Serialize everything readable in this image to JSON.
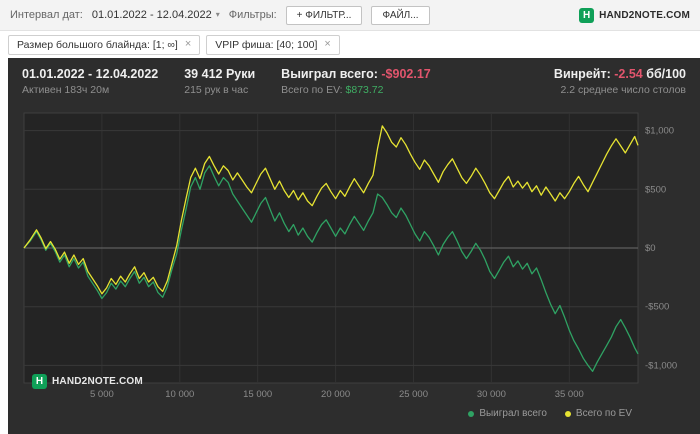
{
  "topbar": {
    "interval_label": "Интервал дат:",
    "date_range": "01.01.2022 - 12.04.2022",
    "caret_icon": "▾",
    "filters_label": "Фильтры:",
    "add_filter_button": "+ ФИЛЬТР...",
    "file_button": "ФАЙЛ...",
    "brand": "HAND2NOTE.COM",
    "brand_icon_letter": "H",
    "brand_color": "#0fa058"
  },
  "chips": [
    {
      "label": "Размер большого блайнда: [1; ∞]",
      "close_icon": "×"
    },
    {
      "label": "VPIP фиша: [40; 100]",
      "close_icon": "×"
    }
  ],
  "stats": {
    "date_range": "01.01.2022 - 12.04.2022",
    "active_time": "Активен 183ч 20м",
    "hands": "39 412 Руки",
    "hands_per_hour": "215 рук в час",
    "won_label": "Выиграл всего:",
    "won_value": "-$902.17",
    "won_color": "#e2556d",
    "ev_label": "Всего по EV:",
    "ev_value": "$873.72",
    "ev_color": "#3fae63",
    "winrate_label": "Винрейт:",
    "winrate_value": "-2.54",
    "winrate_unit": "бб/100",
    "avg_tables": "2.2 среднее число столов"
  },
  "footer_brand": "HAND2NOTE.COM",
  "footer_brand_icon_letter": "H",
  "chart_data": {
    "type": "line",
    "xlabel": "hands",
    "ylabel": "winnings $",
    "xlim": [
      0,
      39412
    ],
    "ylim": [
      -1150,
      1150
    ],
    "grid": true,
    "legend_position": "bottom-right",
    "x_ticks": [
      {
        "v": 5000,
        "label": "5 000"
      },
      {
        "v": 10000,
        "label": "10 000"
      },
      {
        "v": 15000,
        "label": "15 000"
      },
      {
        "v": 20000,
        "label": "20 000"
      },
      {
        "v": 25000,
        "label": "25 000"
      },
      {
        "v": 30000,
        "label": "30 000"
      },
      {
        "v": 35000,
        "label": "35 000"
      }
    ],
    "y_ticks": [
      {
        "v": 1000,
        "label": "$1,000"
      },
      {
        "v": 500,
        "label": "$500"
      },
      {
        "v": 0,
        "label": "$0"
      },
      {
        "v": -500,
        "label": "-$500"
      },
      {
        "v": -1000,
        "label": "-$1,000"
      }
    ],
    "series": [
      {
        "name": "Выиграл всего",
        "color": "#2fa263",
        "points": [
          [
            0,
            0
          ],
          [
            400,
            60
          ],
          [
            800,
            140
          ],
          [
            1100,
            70
          ],
          [
            1400,
            -20
          ],
          [
            1700,
            40
          ],
          [
            2000,
            -30
          ],
          [
            2300,
            -120
          ],
          [
            2600,
            -60
          ],
          [
            2900,
            -160
          ],
          [
            3200,
            -90
          ],
          [
            3500,
            -170
          ],
          [
            3800,
            -120
          ],
          [
            4100,
            -240
          ],
          [
            4400,
            -300
          ],
          [
            4700,
            -360
          ],
          [
            5000,
            -430
          ],
          [
            5300,
            -380
          ],
          [
            5600,
            -300
          ],
          [
            5900,
            -350
          ],
          [
            6200,
            -280
          ],
          [
            6500,
            -330
          ],
          [
            6800,
            -260
          ],
          [
            7100,
            -200
          ],
          [
            7400,
            -300
          ],
          [
            7700,
            -250
          ],
          [
            8000,
            -330
          ],
          [
            8300,
            -290
          ],
          [
            8600,
            -380
          ],
          [
            8900,
            -420
          ],
          [
            9200,
            -330
          ],
          [
            9500,
            -180
          ],
          [
            9800,
            -50
          ],
          [
            10100,
            150
          ],
          [
            10400,
            330
          ],
          [
            10700,
            520
          ],
          [
            11000,
            600
          ],
          [
            11300,
            500
          ],
          [
            11600,
            640
          ],
          [
            11900,
            700
          ],
          [
            12200,
            610
          ],
          [
            12500,
            530
          ],
          [
            12800,
            600
          ],
          [
            13100,
            560
          ],
          [
            13400,
            460
          ],
          [
            13700,
            400
          ],
          [
            14000,
            340
          ],
          [
            14300,
            280
          ],
          [
            14600,
            220
          ],
          [
            14900,
            300
          ],
          [
            15200,
            380
          ],
          [
            15500,
            430
          ],
          [
            15800,
            330
          ],
          [
            16100,
            230
          ],
          [
            16400,
            300
          ],
          [
            16700,
            210
          ],
          [
            17000,
            140
          ],
          [
            17300,
            200
          ],
          [
            17600,
            110
          ],
          [
            17900,
            170
          ],
          [
            18200,
            100
          ],
          [
            18500,
            50
          ],
          [
            18800,
            130
          ],
          [
            19100,
            200
          ],
          [
            19400,
            240
          ],
          [
            19700,
            170
          ],
          [
            20000,
            100
          ],
          [
            20300,
            170
          ],
          [
            20600,
            120
          ],
          [
            20900,
            200
          ],
          [
            21200,
            270
          ],
          [
            21500,
            210
          ],
          [
            21800,
            150
          ],
          [
            22100,
            230
          ],
          [
            22400,
            300
          ],
          [
            22700,
            460
          ],
          [
            23000,
            430
          ],
          [
            23300,
            370
          ],
          [
            23600,
            300
          ],
          [
            23900,
            260
          ],
          [
            24200,
            340
          ],
          [
            24500,
            280
          ],
          [
            24800,
            200
          ],
          [
            25100,
            120
          ],
          [
            25400,
            60
          ],
          [
            25700,
            140
          ],
          [
            26000,
            90
          ],
          [
            26300,
            20
          ],
          [
            26600,
            -60
          ],
          [
            26900,
            30
          ],
          [
            27200,
            90
          ],
          [
            27500,
            140
          ],
          [
            27800,
            60
          ],
          [
            28100,
            -30
          ],
          [
            28400,
            -90
          ],
          [
            28700,
            -30
          ],
          [
            29000,
            40
          ],
          [
            29300,
            -20
          ],
          [
            29600,
            -100
          ],
          [
            29900,
            -200
          ],
          [
            30200,
            -260
          ],
          [
            30500,
            -190
          ],
          [
            30800,
            -120
          ],
          [
            31100,
            -70
          ],
          [
            31400,
            -160
          ],
          [
            31700,
            -110
          ],
          [
            32000,
            -180
          ],
          [
            32300,
            -130
          ],
          [
            32600,
            -220
          ],
          [
            32900,
            -170
          ],
          [
            33200,
            -270
          ],
          [
            33500,
            -380
          ],
          [
            33800,
            -480
          ],
          [
            34100,
            -560
          ],
          [
            34400,
            -490
          ],
          [
            34700,
            -590
          ],
          [
            35000,
            -700
          ],
          [
            35300,
            -790
          ],
          [
            35600,
            -860
          ],
          [
            35900,
            -940
          ],
          [
            36200,
            -1000
          ],
          [
            36500,
            -1050
          ],
          [
            36800,
            -970
          ],
          [
            37100,
            -900
          ],
          [
            37400,
            -830
          ],
          [
            37700,
            -760
          ],
          [
            38000,
            -670
          ],
          [
            38300,
            -610
          ],
          [
            38600,
            -680
          ],
          [
            38900,
            -760
          ],
          [
            39200,
            -850
          ],
          [
            39412,
            -902
          ]
        ]
      },
      {
        "name": "Всего по EV",
        "color": "#e6e332",
        "points": [
          [
            0,
            0
          ],
          [
            400,
            70
          ],
          [
            800,
            155
          ],
          [
            1100,
            85
          ],
          [
            1400,
            -5
          ],
          [
            1700,
            55
          ],
          [
            2000,
            -10
          ],
          [
            2300,
            -95
          ],
          [
            2600,
            -35
          ],
          [
            2900,
            -130
          ],
          [
            3200,
            -60
          ],
          [
            3500,
            -140
          ],
          [
            3800,
            -90
          ],
          [
            4100,
            -200
          ],
          [
            4400,
            -260
          ],
          [
            4700,
            -320
          ],
          [
            5000,
            -390
          ],
          [
            5300,
            -340
          ],
          [
            5600,
            -260
          ],
          [
            5900,
            -310
          ],
          [
            6200,
            -240
          ],
          [
            6500,
            -290
          ],
          [
            6800,
            -220
          ],
          [
            7100,
            -160
          ],
          [
            7400,
            -260
          ],
          [
            7700,
            -210
          ],
          [
            8000,
            -290
          ],
          [
            8300,
            -250
          ],
          [
            8600,
            -330
          ],
          [
            8900,
            -370
          ],
          [
            9200,
            -280
          ],
          [
            9500,
            -130
          ],
          [
            9800,
            20
          ],
          [
            10100,
            230
          ],
          [
            10400,
            420
          ],
          [
            10700,
            600
          ],
          [
            11000,
            680
          ],
          [
            11300,
            590
          ],
          [
            11600,
            720
          ],
          [
            11900,
            780
          ],
          [
            12200,
            700
          ],
          [
            12500,
            630
          ],
          [
            12800,
            700
          ],
          [
            13100,
            660
          ],
          [
            13400,
            580
          ],
          [
            13700,
            640
          ],
          [
            14000,
            580
          ],
          [
            14300,
            520
          ],
          [
            14600,
            470
          ],
          [
            14900,
            550
          ],
          [
            15200,
            630
          ],
          [
            15500,
            680
          ],
          [
            15800,
            590
          ],
          [
            16100,
            500
          ],
          [
            16400,
            570
          ],
          [
            16700,
            490
          ],
          [
            17000,
            430
          ],
          [
            17300,
            490
          ],
          [
            17600,
            410
          ],
          [
            17900,
            470
          ],
          [
            18200,
            400
          ],
          [
            18500,
            360
          ],
          [
            18800,
            440
          ],
          [
            19100,
            510
          ],
          [
            19400,
            550
          ],
          [
            19700,
            480
          ],
          [
            20000,
            420
          ],
          [
            20300,
            490
          ],
          [
            20600,
            440
          ],
          [
            20900,
            520
          ],
          [
            21200,
            590
          ],
          [
            21500,
            530
          ],
          [
            21800,
            470
          ],
          [
            22100,
            550
          ],
          [
            22400,
            620
          ],
          [
            22700,
            850
          ],
          [
            23000,
            1040
          ],
          [
            23300,
            980
          ],
          [
            23600,
            900
          ],
          [
            23900,
            860
          ],
          [
            24200,
            940
          ],
          [
            24500,
            880
          ],
          [
            24800,
            800
          ],
          [
            25100,
            730
          ],
          [
            25400,
            670
          ],
          [
            25700,
            750
          ],
          [
            26000,
            700
          ],
          [
            26300,
            630
          ],
          [
            26600,
            560
          ],
          [
            26900,
            650
          ],
          [
            27200,
            710
          ],
          [
            27500,
            760
          ],
          [
            27800,
            680
          ],
          [
            28100,
            600
          ],
          [
            28400,
            550
          ],
          [
            28700,
            610
          ],
          [
            29000,
            680
          ],
          [
            29300,
            620
          ],
          [
            29600,
            550
          ],
          [
            29900,
            470
          ],
          [
            30200,
            420
          ],
          [
            30500,
            490
          ],
          [
            30800,
            560
          ],
          [
            31100,
            610
          ],
          [
            31400,
            520
          ],
          [
            31700,
            570
          ],
          [
            32000,
            510
          ],
          [
            32300,
            560
          ],
          [
            32600,
            480
          ],
          [
            32900,
            530
          ],
          [
            33200,
            450
          ],
          [
            33500,
            520
          ],
          [
            33800,
            460
          ],
          [
            34100,
            400
          ],
          [
            34400,
            470
          ],
          [
            34700,
            420
          ],
          [
            35000,
            480
          ],
          [
            35300,
            550
          ],
          [
            35600,
            610
          ],
          [
            35900,
            540
          ],
          [
            36200,
            480
          ],
          [
            36500,
            560
          ],
          [
            36800,
            640
          ],
          [
            37100,
            720
          ],
          [
            37400,
            800
          ],
          [
            37700,
            870
          ],
          [
            38000,
            930
          ],
          [
            38300,
            870
          ],
          [
            38600,
            810
          ],
          [
            38900,
            880
          ],
          [
            39200,
            950
          ],
          [
            39412,
            874
          ]
        ]
      }
    ]
  }
}
